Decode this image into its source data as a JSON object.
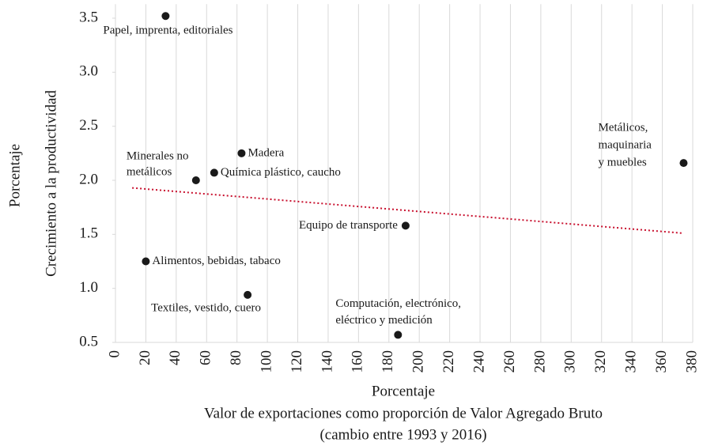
{
  "chart_data": {
    "type": "scatter",
    "ylabel_outer": "Porcentaje",
    "ylabel": "Crecimiento a la productividad",
    "xlabel": [
      "Porcentaje",
      "Valor de exportaciones como proporción de Valor Agregado Bruto",
      "(cambio entre  1993 y 2016)"
    ],
    "series": [
      {
        "color": "#1a1a1a",
        "x": [
          33,
          83,
          53,
          65,
          20,
          87,
          191,
          186,
          374
        ],
        "values": [
          3.52,
          2.25,
          2.0,
          2.07,
          1.25,
          0.94,
          1.58,
          0.57,
          2.16
        ],
        "labels": [
          [
            "Papel, imprenta, editoriales"
          ],
          [
            "Madera"
          ],
          [
            "Minerales no",
            "metálicos"
          ],
          [
            "Química plástico, caucho"
          ],
          [
            "Alimentos, bebidas, tabaco"
          ],
          [
            "Textiles, vestido, cuero"
          ],
          [
            "Equipo de transporte"
          ],
          [
            "Computación, electrónico,",
            "eléctrico y medición"
          ],
          [
            "Metálicos,",
            "maquinaria",
            "y muebles"
          ]
        ]
      }
    ],
    "trendline": {
      "x": [
        11,
        374
      ],
      "values": [
        1.93,
        1.51
      ],
      "color": "#c8102e"
    },
    "xlim": [
      0,
      380
    ],
    "ylim": [
      0.5,
      3.63
    ],
    "xticks": [
      0,
      20,
      40,
      60,
      80,
      100,
      120,
      140,
      160,
      180,
      200,
      220,
      240,
      260,
      280,
      300,
      320,
      340,
      360,
      380
    ],
    "yticks": [
      {
        "value": 0.5,
        "label": "0.5"
      },
      {
        "value": 1.0,
        "label": "1.0"
      },
      {
        "value": 1.5,
        "label": "1.5"
      },
      {
        "value": 2.0,
        "label": "2.0"
      },
      {
        "value": 2.5,
        "label": "2.5"
      },
      {
        "value": 3.0,
        "label": "3.0"
      },
      {
        "value": 3.5,
        "label": "3.5"
      }
    ],
    "grid": "x"
  }
}
